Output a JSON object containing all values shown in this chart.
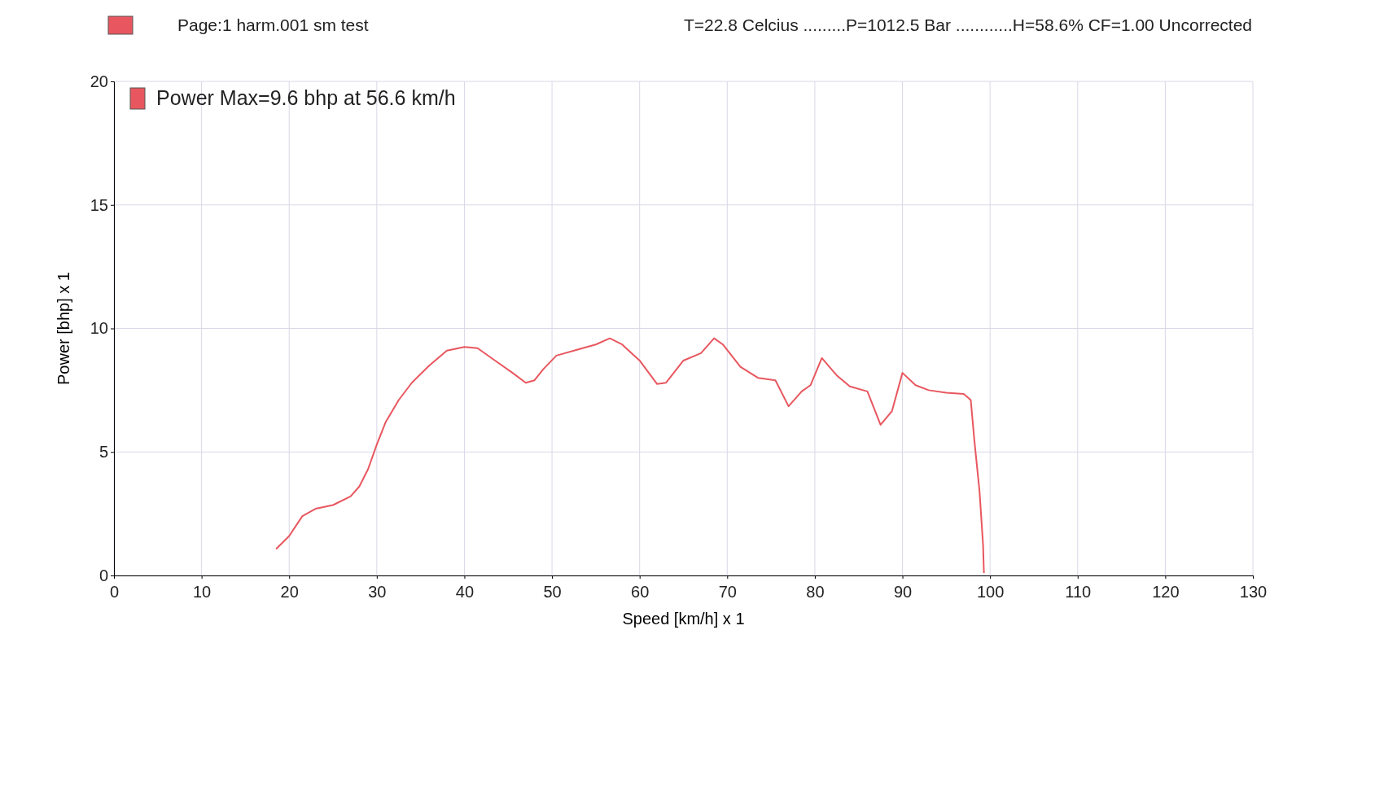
{
  "chart_data": {
    "type": "line",
    "xlabel": "Speed [km/h] x 1",
    "ylabel": "Power [bhp] x 1",
    "annotations": [
      "Page:1 harm.001 sm test",
      "T=22.8 Celcius .........P=1012.5 Bar ............H=58.6% CF=1.00 Uncorrected"
    ],
    "xlim": [
      0,
      130
    ],
    "xticks": [
      0,
      10,
      20,
      30,
      40,
      50,
      60,
      70,
      80,
      90,
      100,
      110,
      120,
      130
    ],
    "ylim": [
      0,
      20
    ],
    "yticks": [
      0,
      5,
      10,
      15,
      20
    ],
    "grid": true,
    "legend": "top left",
    "marker": "none",
    "line_style": "solid",
    "series": [
      {
        "name": "Power  Max=9.6 bhp at 56.6 km/h",
        "color": "#e8575f",
        "x": [
          18.5,
          20,
          21.5,
          23,
          25,
          27,
          28,
          29,
          30,
          31,
          32.5,
          34,
          36,
          38,
          40,
          41.5,
          43.5,
          45.5,
          47,
          48,
          49,
          50.5,
          53,
          55,
          56.6,
          58,
          60,
          62,
          63,
          65,
          67,
          68.5,
          69.5,
          71.5,
          73.5,
          75.5,
          77,
          78.5,
          79.5,
          80.8,
          82.5,
          84,
          86,
          87.5,
          88.8,
          90,
          91.5,
          93,
          95,
          97,
          97.8,
          98.2,
          98.8,
          99.2,
          99.3
        ],
        "values": [
          1.07,
          1.6,
          2.4,
          2.7,
          2.85,
          3.2,
          3.6,
          4.3,
          5.3,
          6.2,
          7.1,
          7.8,
          8.5,
          9.1,
          9.25,
          9.2,
          8.7,
          8.2,
          7.8,
          7.9,
          8.35,
          8.9,
          9.15,
          9.35,
          9.6,
          9.35,
          8.7,
          7.75,
          7.8,
          8.7,
          9.0,
          9.6,
          9.35,
          8.45,
          8.0,
          7.9,
          6.85,
          7.45,
          7.7,
          8.8,
          8.1,
          7.65,
          7.45,
          6.1,
          6.65,
          8.2,
          7.7,
          7.5,
          7.4,
          7.35,
          7.1,
          5.5,
          3.4,
          1.25,
          0.1
        ]
      }
    ]
  }
}
